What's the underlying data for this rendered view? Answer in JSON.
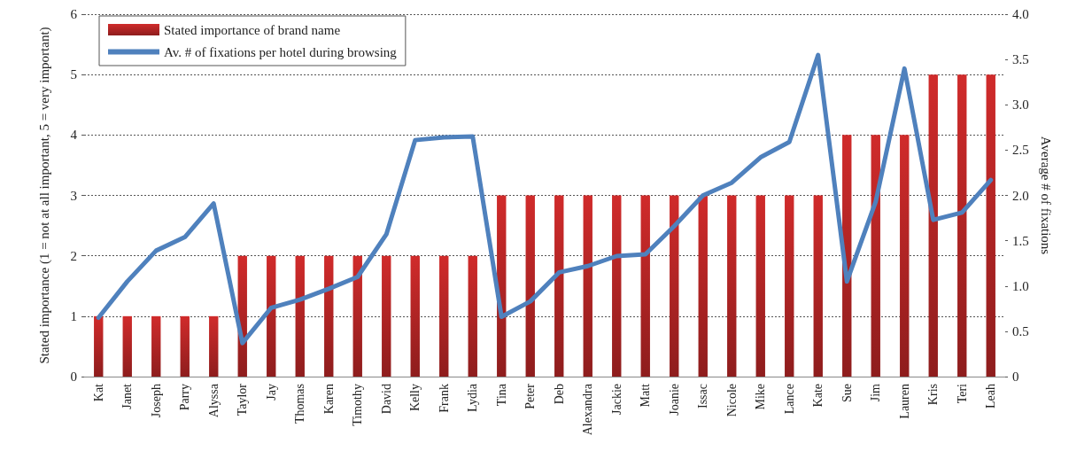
{
  "chart_data": {
    "type": "bar",
    "categories": [
      "Kat",
      "Janet",
      "Joseph",
      "Parry",
      "Alyssa",
      "Taylor",
      "Jay",
      "Thomas",
      "Karen",
      "Timothy",
      "David",
      "Kelly",
      "Frank",
      "Lydia",
      "Tina",
      "Peter",
      "Deb",
      "Alexandra",
      "Jackie",
      "Matt",
      "Joanie",
      "Issac",
      "Nicole",
      "Mike",
      "Lance",
      "Kate",
      "Sue",
      "Jim",
      "Lauren",
      "Kris",
      "Teri",
      "Leah"
    ],
    "series": [
      {
        "name": "Stated importance of brand name",
        "color": "#d02b2b",
        "values": [
          1,
          1,
          1,
          1,
          1,
          2,
          2,
          2,
          2,
          2,
          2,
          2,
          2,
          2,
          3,
          3,
          3,
          3,
          3,
          3,
          3,
          3,
          3,
          3,
          3,
          3,
          4,
          4,
          4,
          5,
          5,
          5
        ]
      },
      {
        "name": "Av. # of fixations per hotel during browsing",
        "type": "line",
        "axis": "y2",
        "color": "#4f81bd",
        "values": [
          0.65,
          1.05,
          1.39,
          1.54,
          1.91,
          0.37,
          0.76,
          0.85,
          0.97,
          1.1,
          1.57,
          2.61,
          2.64,
          2.65,
          0.66,
          0.83,
          1.15,
          1.22,
          1.33,
          1.35,
          1.66,
          2.0,
          2.14,
          2.42,
          2.59,
          3.55,
          1.05,
          1.93,
          3.4,
          1.73,
          1.81,
          2.17
        ]
      }
    ],
    "ylabel": "Stated importance (1 = not at all important, 5 = very important)",
    "y2label": "Average # of fixations",
    "ylim": [
      0,
      6
    ],
    "yticks": [
      0,
      1,
      2,
      3,
      4,
      5,
      6
    ],
    "y2lim": [
      0,
      4
    ],
    "y2ticks": [
      {
        "value": 0,
        "label": "0"
      },
      {
        "value": 0.5,
        "label": "0.5"
      },
      {
        "value": 1,
        "label": "1.0"
      },
      {
        "value": 1.5,
        "label": "1.5"
      },
      {
        "value": 2,
        "label": "2.0"
      },
      {
        "value": 2.5,
        "label": "2.5"
      },
      {
        "value": 3,
        "label": "3.0"
      },
      {
        "value": 3.5,
        "label": "3.5"
      },
      {
        "value": 4,
        "label": "4.0"
      }
    ],
    "grid": "y",
    "legend": "top left",
    "marker": "none",
    "line_style": "solid"
  }
}
